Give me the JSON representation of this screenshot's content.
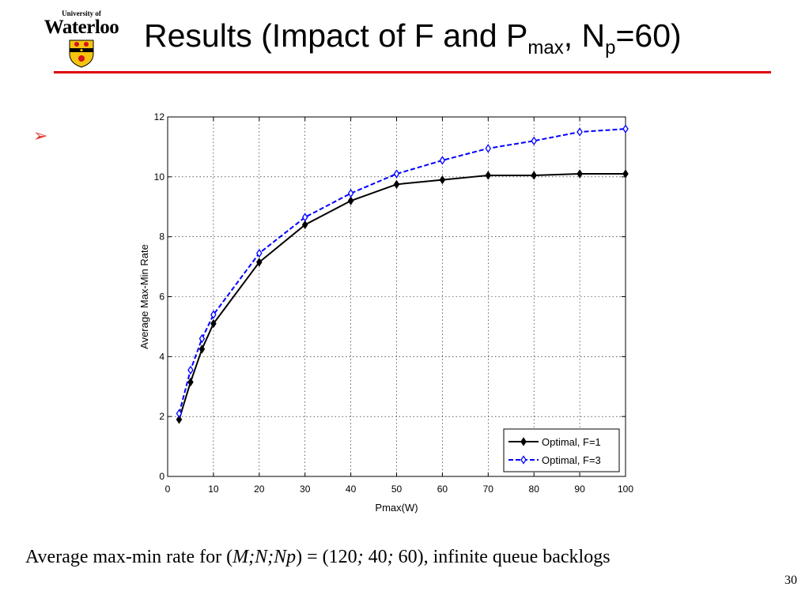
{
  "logo": {
    "line1": "University of",
    "line2": "Waterloo"
  },
  "slide": {
    "title_main": "Results (Impact of F and P",
    "title_sub1": "max",
    "title_mid": ", N",
    "title_sub2": "p",
    "title_end": "=60)",
    "bullet_icon": "arrow-bullet-icon",
    "caption_start": "Average max-min rate for (",
    "caption_vars": "M;N;Np",
    "caption_eq": ") = (120",
    "caption_sep1": ";",
    "caption_v2": " 40",
    "caption_sep2": ";",
    "caption_end": " 60), infinite queue backlogs",
    "page_number": "30"
  },
  "colors": {
    "title_rule": "#e0000a",
    "bullet": "#e2332b",
    "series1": "#000000",
    "series2": "#0000ff"
  },
  "chart_data": {
    "type": "line",
    "xlabel": "Pmax(W)",
    "ylabel": "Average Max-Min Rate",
    "xlim": [
      0,
      100
    ],
    "ylim": [
      0,
      12
    ],
    "xticks": [
      0,
      10,
      20,
      30,
      40,
      50,
      60,
      70,
      80,
      90,
      100
    ],
    "yticks": [
      0,
      2,
      4,
      6,
      8,
      10,
      12
    ],
    "grid": true,
    "legend_position": "bottom-right",
    "series": [
      {
        "name": "Optimal, F=1",
        "line_style": "solid",
        "marker": "diamond",
        "color": "#000000",
        "x": [
          2.5,
          5,
          7.5,
          10,
          20,
          30,
          40,
          50,
          60,
          70,
          80,
          90,
          100
        ],
        "y": [
          1.9,
          3.15,
          4.25,
          5.1,
          7.15,
          8.4,
          9.2,
          9.75,
          9.9,
          10.05,
          10.05,
          10.1,
          10.1
        ]
      },
      {
        "name": "Optimal, F=3",
        "line_style": "dashed",
        "marker": "diamond",
        "color": "#0000ff",
        "x": [
          2.5,
          5,
          7.5,
          10,
          20,
          30,
          40,
          50,
          60,
          70,
          80,
          90,
          100
        ],
        "y": [
          2.1,
          3.55,
          4.6,
          5.4,
          7.45,
          8.65,
          9.45,
          10.1,
          10.55,
          10.95,
          11.2,
          11.5,
          11.6
        ]
      }
    ]
  }
}
